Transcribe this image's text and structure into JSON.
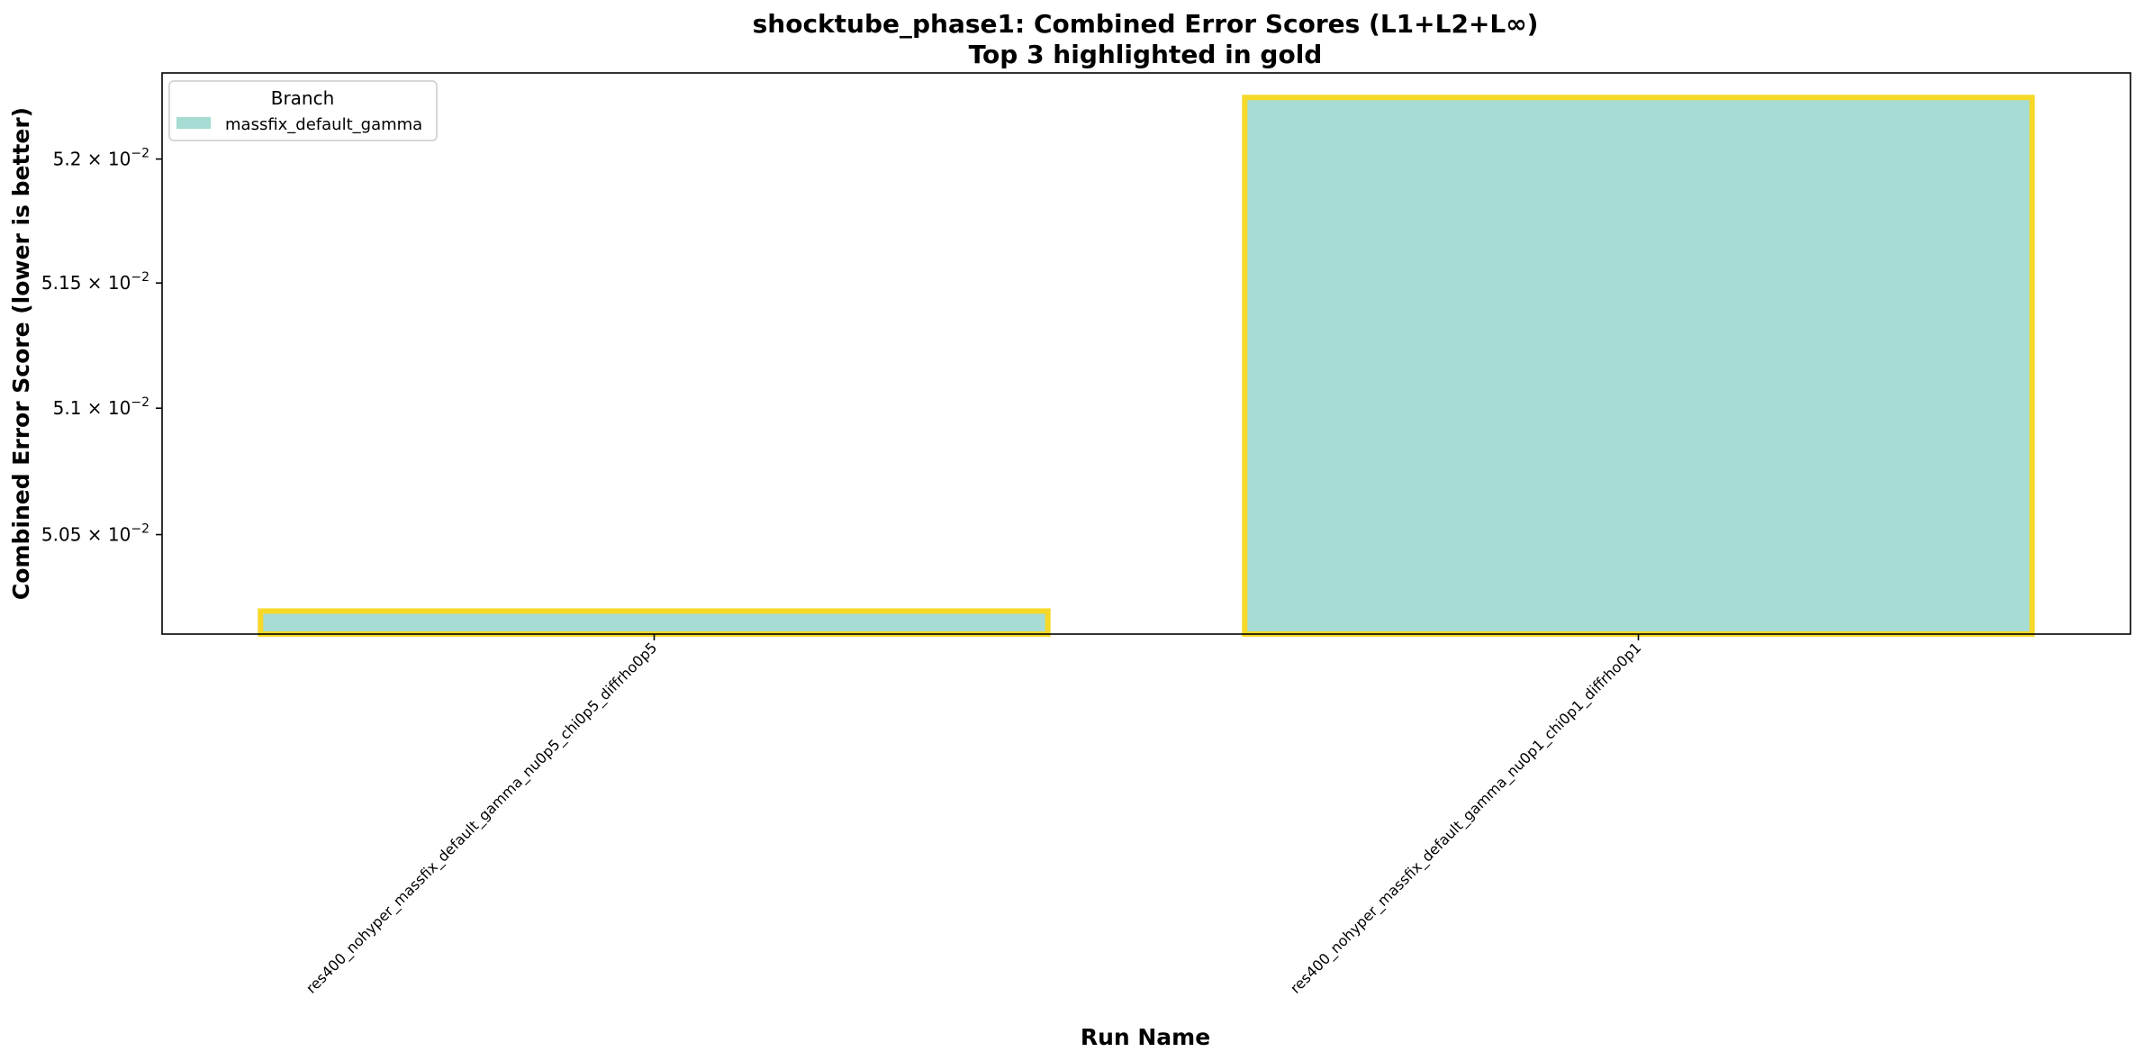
{
  "chart_data": {
    "type": "bar",
    "title": "shocktube_phase1: Combined Error Scores (L1+L2+L∞)",
    "subtitle": "Top 3 highlighted in gold",
    "xlabel": "Run Name",
    "ylabel": "Combined Error Score (lower is better)",
    "yscale": "log",
    "ylim": [
      0.05011,
      0.05235
    ],
    "categories": [
      "res400_nohyper_massfix_default_gamma_nu0p5_chi0p5_diffrho0p5",
      "res400_nohyper_massfix_default_gamma_nu0p1_chi0p1_diffrho0p1"
    ],
    "series": [
      {
        "name": "massfix_default_gamma",
        "values": [
          0.0502,
          0.05225
        ]
      }
    ],
    "highlighted": [
      true,
      true
    ],
    "yticks": [
      {
        "value": 0.0505,
        "mantissa": "5.05",
        "exponent": "−2"
      },
      {
        "value": 0.051,
        "mantissa": "5.1",
        "exponent": "−2"
      },
      {
        "value": 0.0515,
        "mantissa": "5.15",
        "exponent": "−2"
      },
      {
        "value": 0.052,
        "mantissa": "5.2",
        "exponent": "−2"
      }
    ],
    "legend": {
      "title": "Branch",
      "position": "upper-left",
      "entries": [
        "massfix_default_gamma"
      ]
    },
    "grid": false,
    "colors": {
      "bar_fill": "#a6dcd4",
      "highlight_edge": "#f6d928"
    }
  }
}
